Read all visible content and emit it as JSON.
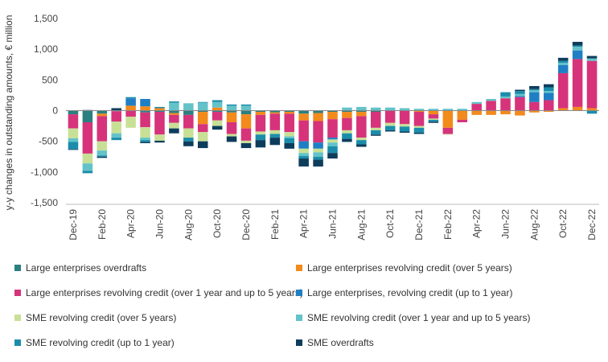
{
  "chart_data": {
    "type": "stacked-bar",
    "ylabel": "y-y changes in outstanding amounts, € million",
    "ylim": [
      -1500,
      1500
    ],
    "yticks": [
      -1500,
      -1000,
      -500,
      0,
      500,
      1000,
      1500
    ],
    "ytick_labels": [
      "-1,500",
      "-1,000",
      "-500",
      "0",
      "500",
      "1,000",
      "1,500"
    ],
    "categories": [
      "Dec-19",
      "Jan-20",
      "Feb-20",
      "Mar-20",
      "Apr-20",
      "May-20",
      "Jun-20",
      "Jul-20",
      "Aug-20",
      "Sep-20",
      "Oct-20",
      "Nov-20",
      "Dec-20",
      "Jan-21",
      "Feb-21",
      "Mar-21",
      "Apr-21",
      "May-21",
      "Jun-21",
      "Jul-21",
      "Aug-21",
      "Sep-21",
      "Oct-21",
      "Nov-21",
      "Dec-21",
      "Jan-22",
      "Feb-22",
      "Mar-22",
      "Apr-22",
      "May-22",
      "Jun-22",
      "Jul-22",
      "Aug-22",
      "Sep-22",
      "Oct-22",
      "Nov-22",
      "Dec-22"
    ],
    "xtick_labels": [
      "Dec-19",
      "Feb-20",
      "Apr-20",
      "Jun-20",
      "Aug-20",
      "Oct-20",
      "Dec-20",
      "Feb-21",
      "Apr-21",
      "Jun-21",
      "Aug-21",
      "Oct-21",
      "Dec-21",
      "Feb-22",
      "Apr-22",
      "Jun-22",
      "Aug-22",
      "Oct-22",
      "Dec-22"
    ],
    "series": [
      {
        "name": "Large enterprises overdrafts",
        "color": "#2a8080",
        "values": [
          -60,
          -190,
          -50,
          -10,
          0,
          -30,
          -20,
          -40,
          -70,
          -20,
          -20,
          -30,
          -60,
          -20,
          -30,
          -20,
          -50,
          -40,
          -20,
          -20,
          -20,
          -20,
          0,
          0,
          0,
          0,
          0,
          0,
          0,
          0,
          0,
          0,
          0,
          0,
          0,
          0,
          0
        ]
      },
      {
        "name": "Large enterprises revolving credit (over 5 years)",
        "color": "#f28a1c",
        "values": [
          0,
          0,
          -40,
          0,
          80,
          70,
          40,
          -30,
          0,
          -200,
          50,
          -160,
          -230,
          -50,
          -20,
          -30,
          -110,
          -130,
          -120,
          -100,
          -70,
          0,
          0,
          0,
          -20,
          -60,
          -280,
          -150,
          -70,
          -70,
          -60,
          -80,
          -30,
          -20,
          40,
          60,
          40
        ]
      },
      {
        "name": "Large enterprises revolving credit (over 1 year and up to 5 years)",
        "color": "#d6337a",
        "values": [
          -230,
          -510,
          -410,
          -170,
          -100,
          -240,
          -370,
          -130,
          -220,
          -130,
          -140,
          -190,
          -200,
          -270,
          -270,
          -300,
          -340,
          -350,
          -300,
          -200,
          -350,
          -260,
          -200,
          -220,
          -230,
          -70,
          -100,
          -40,
          110,
          160,
          200,
          220,
          140,
          170,
          570,
          780,
          770
        ]
      },
      {
        "name": "Large enterprises, revolving credit (up to 1 year)",
        "color": "#1f7fc4",
        "values": [
          0,
          0,
          0,
          0,
          120,
          120,
          0,
          0,
          0,
          0,
          0,
          0,
          0,
          0,
          0,
          0,
          -120,
          -100,
          -30,
          0,
          0,
          0,
          0,
          0,
          0,
          0,
          0,
          0,
          0,
          0,
          0,
          20,
          160,
          120,
          130,
          140,
          0
        ]
      },
      {
        "name": "SME revolving credit (over 5 years)",
        "color": "#c8e096",
        "values": [
          -160,
          -160,
          -150,
          -190,
          -180,
          -170,
          -100,
          -90,
          -150,
          -150,
          -90,
          -40,
          -40,
          -50,
          -60,
          -70,
          -70,
          -60,
          -50,
          -50,
          -40,
          -40,
          -50,
          -40,
          -30,
          -20,
          -10,
          0,
          0,
          0,
          0,
          0,
          0,
          0,
          0,
          0,
          0
        ]
      },
      {
        "name": "SME revolving credit (over 1 year and up to 5 years)",
        "color": "#63c3c9",
        "values": [
          -60,
          -120,
          -80,
          -70,
          0,
          -40,
          0,
          130,
          120,
          130,
          90,
          80,
          80,
          0,
          0,
          -30,
          -50,
          -70,
          -60,
          50,
          60,
          50,
          50,
          40,
          30,
          30,
          30,
          30,
          30,
          30,
          30,
          30,
          30,
          30,
          40,
          60,
          40
        ]
      },
      {
        "name": "SME revolving credit (up to 1 year)",
        "color": "#1b8dab",
        "values": [
          -120,
          -40,
          -20,
          -40,
          20,
          -30,
          20,
          20,
          -60,
          10,
          30,
          20,
          20,
          -90,
          -60,
          -80,
          -40,
          -50,
          -110,
          -90,
          -70,
          -70,
          -70,
          -80,
          -80,
          -30,
          0,
          0,
          0,
          0,
          70,
          50,
          20,
          60,
          30,
          20,
          -50
        ]
      },
      {
        "name": "SME overdrafts",
        "color": "#0e3d5c",
        "values": [
          -10,
          10,
          -20,
          40,
          0,
          -20,
          -30,
          -80,
          -80,
          -110,
          -60,
          -90,
          -80,
          -120,
          -120,
          -90,
          -130,
          -110,
          -90,
          -50,
          -40,
          -20,
          -20,
          -20,
          -20,
          -20,
          0,
          0,
          0,
          0,
          0,
          20,
          50,
          50,
          50,
          60,
          40
        ]
      }
    ]
  }
}
